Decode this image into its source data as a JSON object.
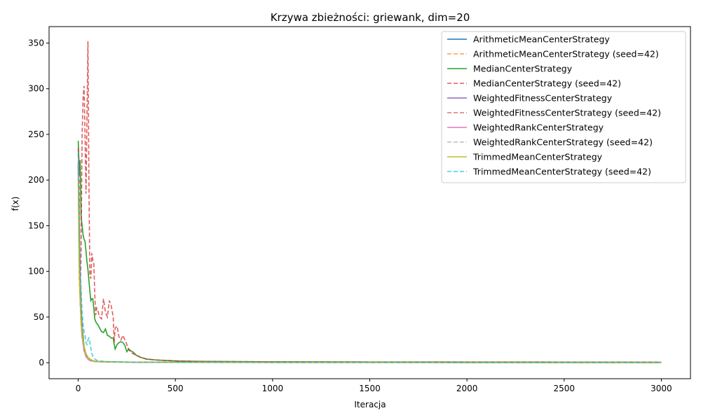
{
  "chart_data": {
    "type": "line",
    "title": "Krzywa zbieżności: griewank, dim=20",
    "xlabel": "Iteracja",
    "ylabel": "f(x)",
    "xlim": [
      -150,
      3150
    ],
    "ylim": [
      -17.5,
      368
    ],
    "xticks": [
      0,
      500,
      1000,
      1500,
      2000,
      2500,
      3000
    ],
    "yticks": [
      0,
      50,
      100,
      150,
      200,
      250,
      300,
      350
    ],
    "grid": false,
    "legend_position": "top-right",
    "series": [
      {
        "name": "ArithmeticMeanCenterStrategy",
        "color": "#1f77b4",
        "dash": "solid",
        "x": [
          0,
          5,
          10,
          15,
          20,
          30,
          40,
          50,
          60,
          80,
          100,
          150,
          200,
          300,
          500,
          1000,
          2000,
          3000
        ],
        "y": [
          215,
          150,
          95,
          60,
          40,
          18,
          9,
          5,
          3,
          1.6,
          1.2,
          1.0,
          0.8,
          0.6,
          0.5,
          0.4,
          0.3,
          0.3
        ]
      },
      {
        "name": "ArithmeticMeanCenterStrategy (seed=42)",
        "color": "#ff7f0e",
        "dash": "dashed",
        "x": [
          0,
          5,
          10,
          15,
          20,
          30,
          40,
          50,
          60,
          80,
          100,
          150,
          200,
          300,
          500,
          1000,
          2000,
          3000
        ],
        "y": [
          205,
          90,
          68,
          50,
          35,
          17,
          9,
          5,
          3,
          1.6,
          1.2,
          1.0,
          0.8,
          0.6,
          0.5,
          0.4,
          0.3,
          0.3
        ]
      },
      {
        "name": "MedianCenterStrategy",
        "color": "#2ca02c",
        "dash": "solid",
        "x": [
          0,
          3,
          6,
          10,
          15,
          20,
          25,
          30,
          35,
          40,
          45,
          50,
          55,
          60,
          65,
          70,
          75,
          80,
          85,
          90,
          95,
          100,
          110,
          120,
          130,
          140,
          150,
          160,
          170,
          180,
          185,
          190,
          200,
          210,
          220,
          230,
          240,
          250,
          260,
          270,
          280,
          290,
          300,
          320,
          350,
          400,
          450,
          500,
          600,
          800,
          1000,
          1500,
          2000,
          2500,
          3000
        ],
        "y": [
          243,
          225,
          205,
          222,
          160,
          150,
          140,
          135,
          133,
          122,
          110,
          102,
          90,
          78,
          68,
          70,
          70,
          60,
          48,
          45,
          43,
          42,
          38,
          34,
          33,
          37,
          30,
          29,
          27,
          27,
          20,
          15,
          20,
          22,
          23,
          22,
          19,
          12,
          15,
          13,
          12,
          10,
          8,
          6,
          4,
          3,
          2.5,
          2,
          1.5,
          1.2,
          1.0,
          0.8,
          0.7,
          0.6,
          0.5
        ]
      },
      {
        "name": "MedianCenterStrategy (seed=42)",
        "color": "#d62728",
        "dash": "dashed",
        "x": [
          0,
          5,
          10,
          15,
          20,
          25,
          30,
          35,
          40,
          45,
          50,
          55,
          60,
          65,
          70,
          75,
          80,
          85,
          90,
          95,
          100,
          110,
          120,
          130,
          140,
          150,
          160,
          170,
          180,
          185,
          190,
          200,
          210,
          220,
          230,
          240,
          250,
          260,
          270,
          280,
          300,
          320,
          350,
          400,
          450,
          500,
          600,
          800,
          1000,
          1500,
          2000,
          2500,
          3000
        ],
        "y": [
          235,
          200,
          68,
          125,
          250,
          290,
          303,
          250,
          185,
          270,
          352,
          200,
          95,
          92,
          120,
          112,
          110,
          75,
          52,
          60,
          58,
          50,
          48,
          70,
          55,
          50,
          68,
          62,
          50,
          22,
          38,
          40,
          28,
          25,
          30,
          25,
          20,
          14,
          12,
          10,
          8,
          6,
          4,
          3,
          2.5,
          2,
          1.5,
          1.2,
          1.0,
          0.8,
          0.8,
          0.7,
          0.7
        ]
      },
      {
        "name": "WeightedFitnessCenterStrategy",
        "color": "#9467bd",
        "dash": "solid",
        "x": [
          0,
          5,
          10,
          15,
          20,
          30,
          40,
          50,
          60,
          80,
          100,
          150,
          200,
          300,
          500,
          1000,
          2000,
          3000
        ],
        "y": [
          218,
          120,
          70,
          45,
          30,
          14,
          7,
          4,
          2.5,
          1.5,
          1.1,
          0.9,
          0.7,
          0.5,
          0.4,
          0.3,
          0.2,
          0.2
        ]
      },
      {
        "name": "WeightedFitnessCenterStrategy (seed=42)",
        "color": "#c44e52",
        "dash": "dashed",
        "x": [
          0,
          5,
          10,
          15,
          20,
          30,
          40,
          50,
          60,
          80,
          100,
          150,
          200,
          300,
          500,
          1000,
          2000,
          3000
        ],
        "y": [
          210,
          115,
          66,
          42,
          28,
          13,
          7,
          4,
          2.5,
          1.5,
          1.1,
          0.9,
          0.7,
          0.5,
          0.4,
          0.3,
          0.2,
          0.2
        ]
      },
      {
        "name": "WeightedRankCenterStrategy",
        "color": "#e377c2",
        "dash": "solid",
        "x": [
          0,
          5,
          10,
          15,
          20,
          30,
          40,
          50,
          60,
          80,
          100,
          150,
          200,
          300,
          500,
          1000,
          2000,
          3000
        ],
        "y": [
          220,
          125,
          75,
          48,
          32,
          15,
          8,
          4.5,
          3,
          1.6,
          1.2,
          1.0,
          0.8,
          0.6,
          0.5,
          0.4,
          0.3,
          0.3
        ]
      },
      {
        "name": "WeightedRankCenterStrategy (seed=42)",
        "color": "#a8a8a8",
        "dash": "dashed",
        "x": [
          0,
          5,
          10,
          15,
          20,
          30,
          40,
          50,
          60,
          80,
          100,
          150,
          200,
          300,
          500,
          1000,
          2000,
          3000
        ],
        "y": [
          212,
          118,
          68,
          44,
          29,
          14,
          7,
          4,
          2.5,
          1.5,
          1.1,
          0.9,
          0.7,
          0.5,
          0.4,
          0.3,
          0.2,
          0.2
        ]
      },
      {
        "name": "TrimmedMeanCenterStrategy",
        "color": "#bcbd22",
        "dash": "solid",
        "x": [
          0,
          5,
          10,
          15,
          20,
          30,
          40,
          50,
          60,
          80,
          100,
          150,
          200,
          300,
          500,
          1000,
          2000,
          3000
        ],
        "y": [
          200,
          110,
          68,
          45,
          32,
          18,
          10,
          6,
          4,
          2,
          1.4,
          1.0,
          0.8,
          0.6,
          0.5,
          0.4,
          0.3,
          0.3
        ]
      },
      {
        "name": "TrimmedMeanCenterStrategy (seed=42)",
        "color": "#17becf",
        "dash": "dashed",
        "x": [
          0,
          5,
          10,
          15,
          20,
          25,
          30,
          35,
          40,
          45,
          50,
          55,
          60,
          70,
          80,
          100,
          150,
          200,
          300,
          500,
          1000,
          2000,
          3000
        ],
        "y": [
          230,
          170,
          100,
          80,
          55,
          42,
          35,
          30,
          22,
          20,
          25,
          27,
          22,
          10,
          5,
          2,
          1.2,
          0.9,
          0.6,
          0.5,
          0.4,
          0.3,
          0.3
        ]
      }
    ]
  }
}
